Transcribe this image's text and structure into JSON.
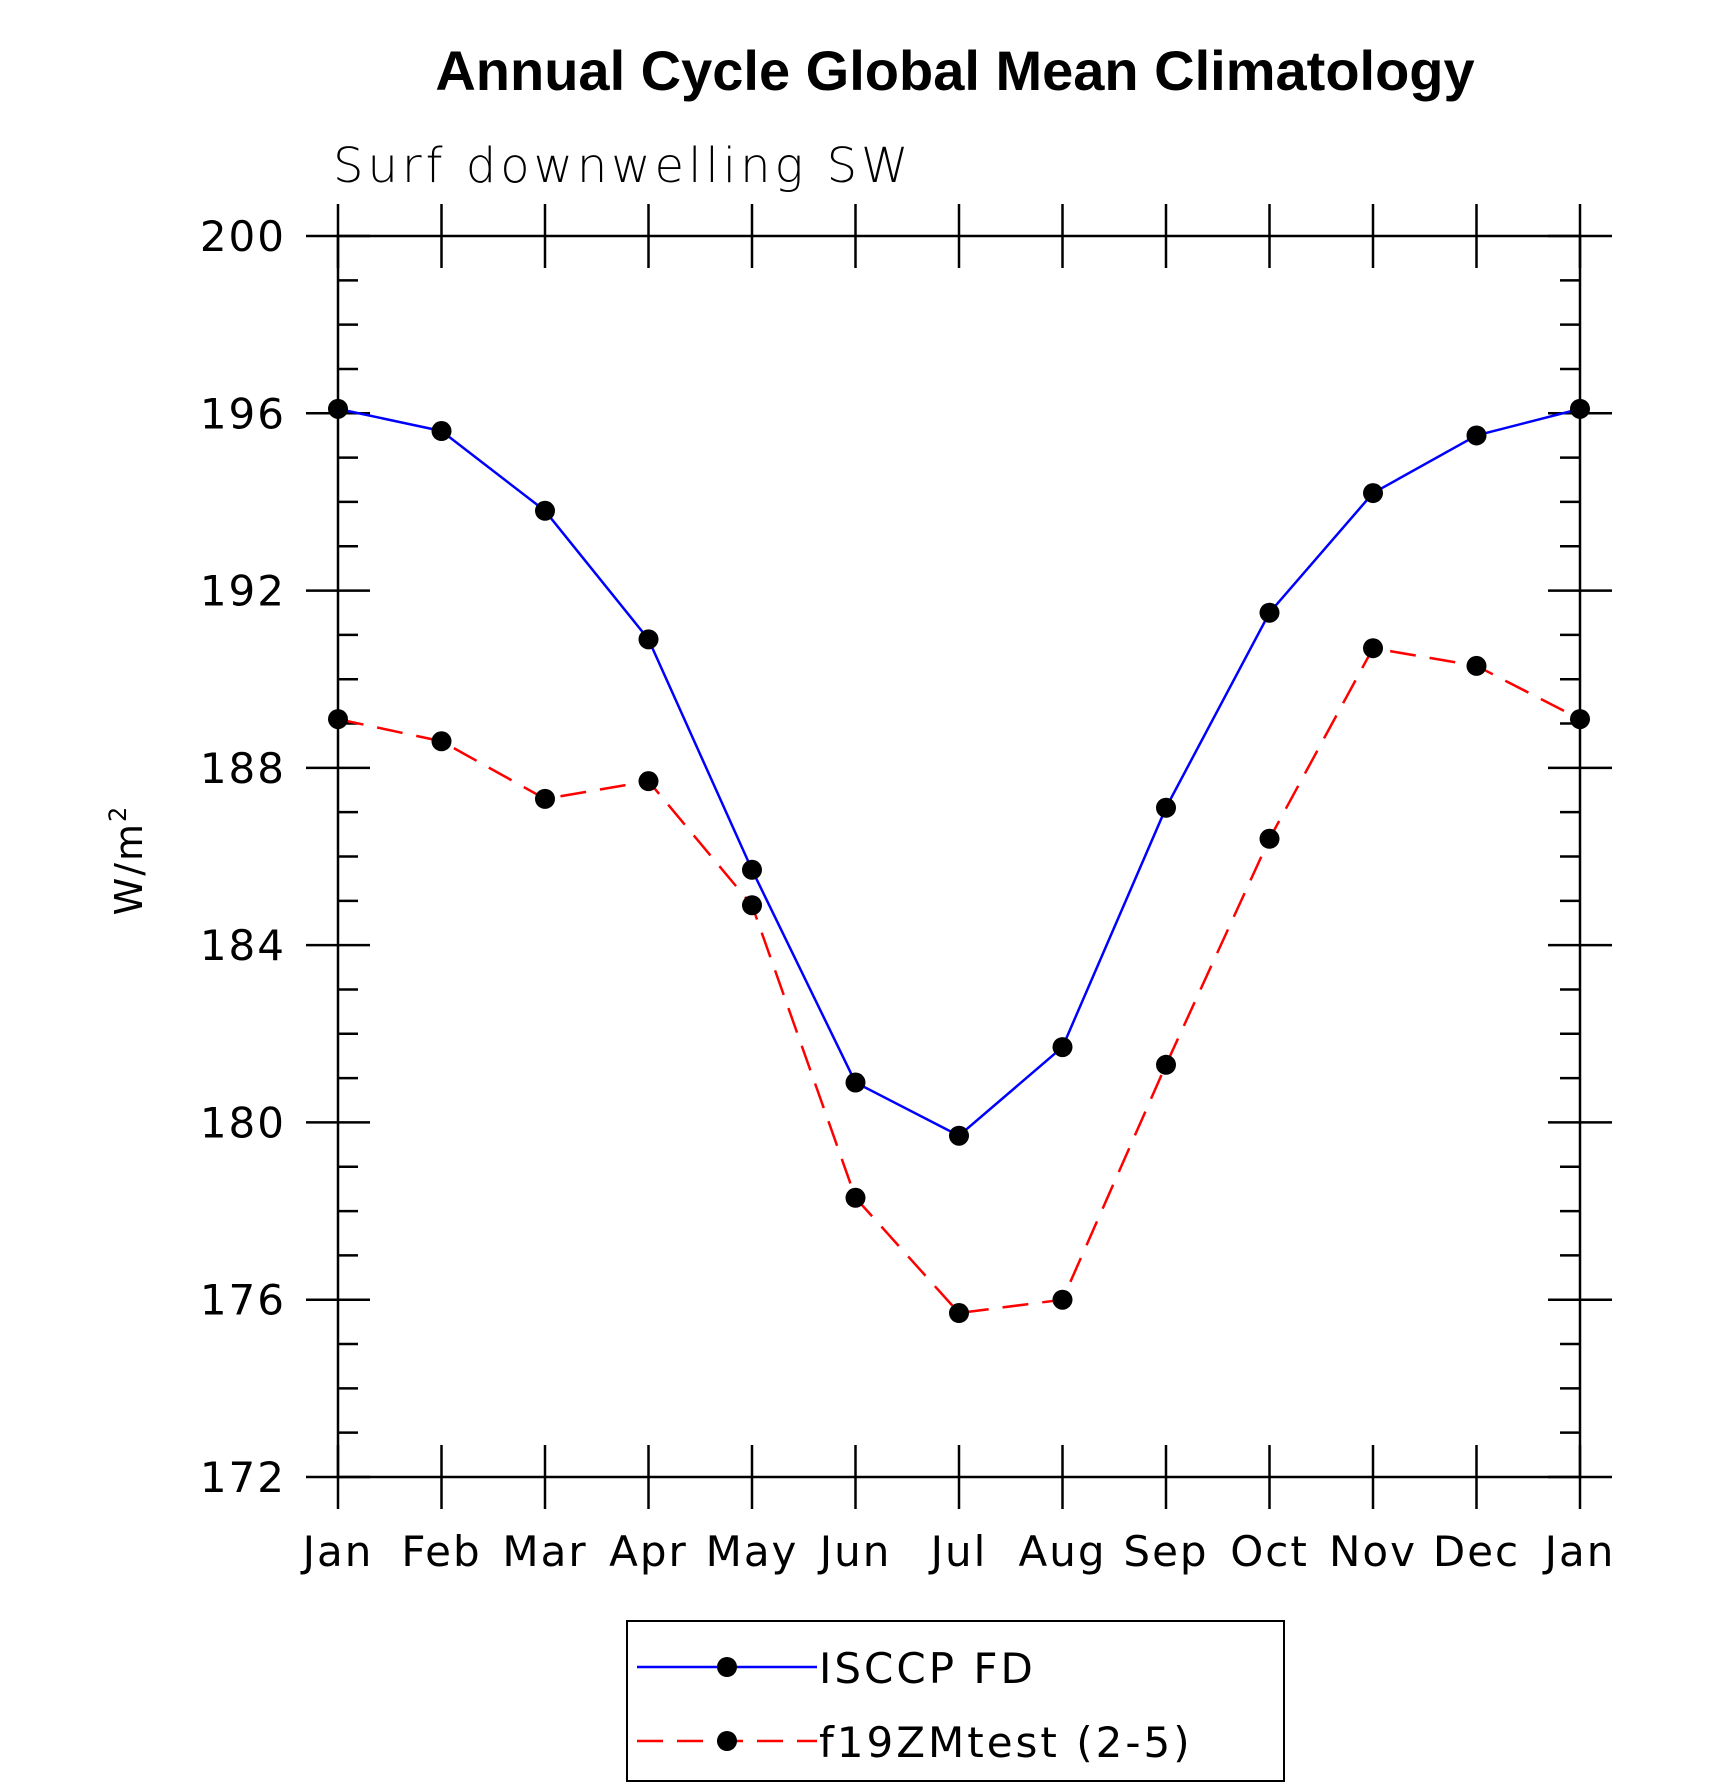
{
  "chart_data": {
    "type": "line",
    "title": "Annual Cycle Global Mean Climatology",
    "subtitle": "Surf downwelling SW",
    "ylabel": "W/m",
    "ylabel_sup": "2",
    "xlabel": "",
    "ylim": [
      172,
      200
    ],
    "yticks": [
      "172",
      "176",
      "180",
      "184",
      "188",
      "192",
      "196",
      "200"
    ],
    "categories": [
      "Jan",
      "Feb",
      "Mar",
      "Apr",
      "May",
      "Jun",
      "Jul",
      "Aug",
      "Sep",
      "Oct",
      "Nov",
      "Dec",
      "Jan"
    ],
    "grid": false,
    "legend_position": "bottom-center",
    "series": [
      {
        "name": "ISCCP FD",
        "color": "#0000ff",
        "dashed": false,
        "marker": "filled-circle",
        "values": [
          196.1,
          195.6,
          193.8,
          190.9,
          185.7,
          180.9,
          179.7,
          181.7,
          187.1,
          191.5,
          194.2,
          195.5,
          196.1
        ]
      },
      {
        "name": "f19ZMtest (2-5)",
        "color": "#ff0000",
        "dashed": true,
        "marker": "filled-circle",
        "values": [
          189.1,
          188.6,
          187.3,
          187.7,
          184.9,
          178.3,
          175.7,
          176.0,
          181.3,
          186.4,
          190.7,
          190.3,
          189.1
        ]
      }
    ]
  }
}
